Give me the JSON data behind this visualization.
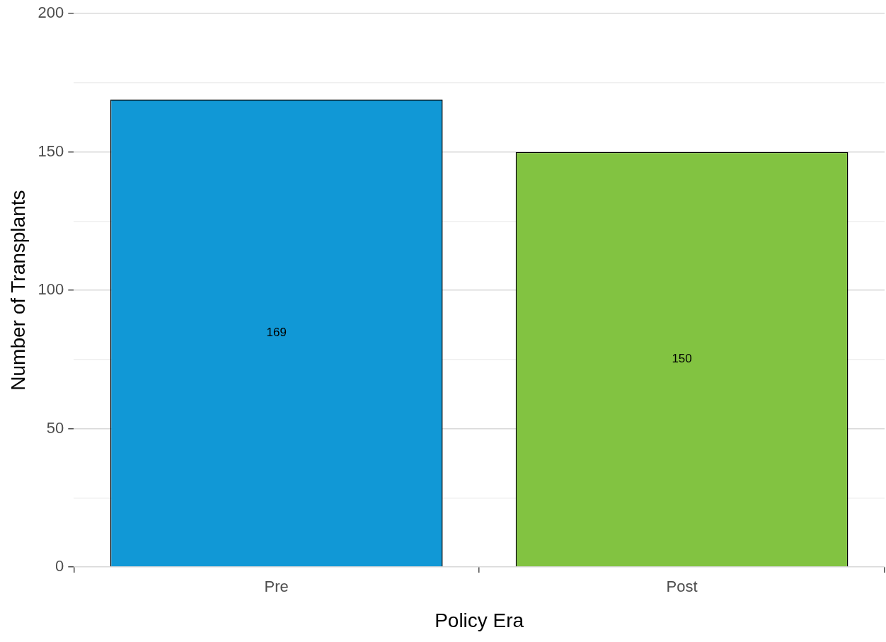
{
  "chart_data": {
    "type": "bar",
    "xlabel": "Policy Era",
    "ylabel": "Number of Transplants",
    "categories": [
      "Pre",
      "Post"
    ],
    "values": [
      169,
      150
    ],
    "colors": [
      "#1198d6",
      "#82c341"
    ],
    "ylim": [
      0,
      200
    ],
    "yticks": [
      0,
      {
        "value": 25,
        "label": null
      },
      50,
      {
        "value": 75,
        "label": null
      },
      100,
      {
        "value": 125,
        "label": null
      },
      150,
      {
        "value": 175,
        "label": null
      },
      200
    ],
    "grid": "y",
    "data_labels": true,
    "legend": false
  }
}
